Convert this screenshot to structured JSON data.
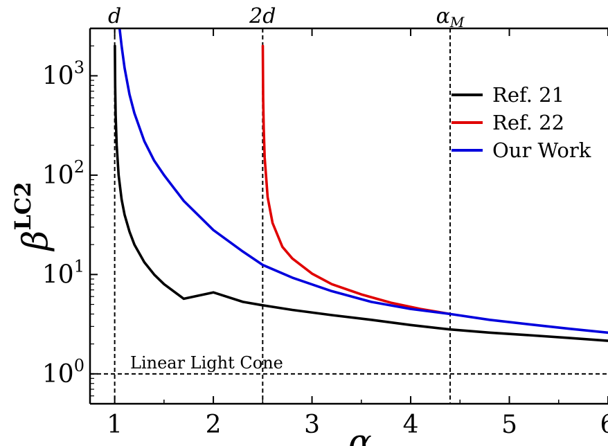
{
  "chart_data": {
    "type": "line",
    "xlabel": "α",
    "ylabel": "β",
    "ylabel_sup": "LC2",
    "xlim": [
      0.75,
      6.0
    ],
    "ylim": [
      0.5,
      3000
    ],
    "yscale": "log",
    "grid": false,
    "legend_position": "top-right",
    "x_ticks": [
      1,
      2,
      3,
      4,
      5,
      6
    ],
    "x_tick_labels": [
      "1",
      "2",
      "3",
      "4",
      "5",
      "6"
    ],
    "y_ticks": [
      1,
      10,
      100,
      1000
    ],
    "y_tick_base": "10",
    "y_tick_exponents": [
      "0",
      "1",
      "2",
      "3"
    ],
    "vlines": [
      {
        "x": 1.0,
        "label": "d",
        "style": "dashed"
      },
      {
        "x": 2.5,
        "label": "2d",
        "style": "dashed"
      },
      {
        "x": 4.4,
        "label": "α_M",
        "label_base": "α",
        "label_sub": "M",
        "style": "dashed"
      }
    ],
    "hlines": [
      {
        "y": 1.0,
        "label": "Linear Light Cone",
        "style": "dashed"
      }
    ],
    "series": [
      {
        "name": "Ref. 21",
        "color": "#000000",
        "x": [
          1.002,
          1.005,
          1.01,
          1.02,
          1.04,
          1.07,
          1.1,
          1.15,
          1.2,
          1.3,
          1.4,
          1.5,
          1.7,
          2.0,
          2.3,
          2.5,
          2.8,
          3.2,
          3.6,
          4.0,
          4.4,
          4.8,
          5.2,
          5.6,
          6.0
        ],
        "y": [
          2000,
          800,
          400,
          200,
          100,
          57,
          40,
          27,
          20,
          13.3,
          10,
          8,
          5.7,
          6.6,
          5.3,
          4.9,
          4.4,
          3.9,
          3.5,
          3.1,
          2.8,
          2.6,
          2.45,
          2.3,
          2.15
        ]
      },
      {
        "name": "Ref. 22",
        "color": "#e00000",
        "x": [
          2.501,
          2.505,
          2.51,
          2.52,
          2.55,
          2.6,
          2.7,
          2.8,
          3.0,
          3.2,
          3.5,
          3.8,
          4.1,
          4.4
        ],
        "y": [
          2000,
          600,
          300,
          150,
          60,
          33,
          19,
          14.5,
          10.2,
          8.0,
          6.3,
          5.2,
          4.5,
          4.0
        ]
      },
      {
        "name": "Our Work",
        "color": "#0000dd",
        "x": [
          1.05,
          1.07,
          1.1,
          1.15,
          1.2,
          1.3,
          1.4,
          1.5,
          1.7,
          2.0,
          2.3,
          2.5,
          2.8,
          3.2,
          3.6,
          4.0,
          4.4,
          4.8,
          5.2,
          5.6,
          6.0
        ],
        "y": [
          3000,
          2000,
          1200,
          650,
          420,
          220,
          140,
          100,
          55,
          28,
          17,
          12.5,
          9.3,
          6.8,
          5.3,
          4.5,
          4.0,
          3.5,
          3.15,
          2.85,
          2.6
        ]
      }
    ]
  }
}
